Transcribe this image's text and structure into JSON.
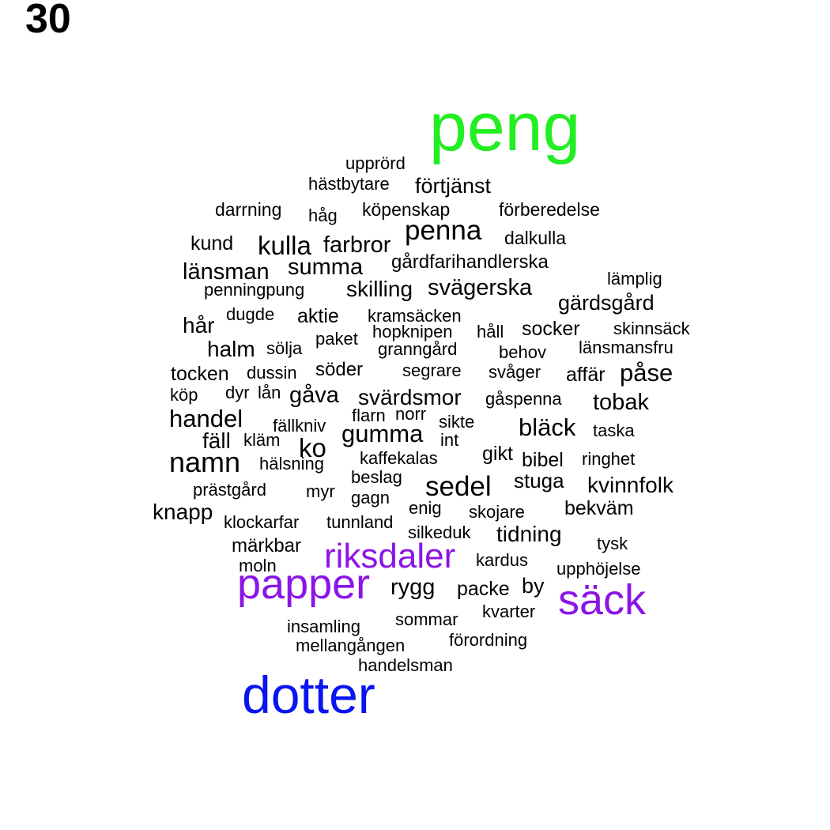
{
  "panel_label": "30",
  "colors": {
    "default": "#000000",
    "green": "#22ee22",
    "purple": "#8b14e6",
    "blue": "#0a14f0"
  },
  "words": [
    {
      "text": "peng",
      "color": "green"
    },
    {
      "text": "dotter",
      "color": "blue"
    },
    {
      "text": "papper",
      "color": "purple"
    },
    {
      "text": "riksdaler",
      "color": "purple"
    },
    {
      "text": "säck",
      "color": "purple"
    },
    {
      "text": "upprörd"
    },
    {
      "text": "hästbytare"
    },
    {
      "text": "förtjänst"
    },
    {
      "text": "darrning"
    },
    {
      "text": "håg"
    },
    {
      "text": "köpenskap"
    },
    {
      "text": "förberedelse"
    },
    {
      "text": "penna"
    },
    {
      "text": "kund"
    },
    {
      "text": "kulla"
    },
    {
      "text": "farbror"
    },
    {
      "text": "dalkulla"
    },
    {
      "text": "länsman"
    },
    {
      "text": "summa"
    },
    {
      "text": "gårdfarihandlerska"
    },
    {
      "text": "lämplig"
    },
    {
      "text": "penningpung"
    },
    {
      "text": "skilling"
    },
    {
      "text": "svägerska"
    },
    {
      "text": "gärdsgård"
    },
    {
      "text": "hår"
    },
    {
      "text": "dugde"
    },
    {
      "text": "aktie"
    },
    {
      "text": "kramsäcken"
    },
    {
      "text": "hopknipen"
    },
    {
      "text": "håll"
    },
    {
      "text": "socker"
    },
    {
      "text": "skinnsäck"
    },
    {
      "text": "halm"
    },
    {
      "text": "sölja"
    },
    {
      "text": "paket"
    },
    {
      "text": "granngård"
    },
    {
      "text": "behov"
    },
    {
      "text": "länsmansfru"
    },
    {
      "text": "tocken"
    },
    {
      "text": "dussin"
    },
    {
      "text": "söder"
    },
    {
      "text": "segrare"
    },
    {
      "text": "svåger"
    },
    {
      "text": "affär"
    },
    {
      "text": "påse"
    },
    {
      "text": "köp"
    },
    {
      "text": "dyr"
    },
    {
      "text": "lån"
    },
    {
      "text": "gåva"
    },
    {
      "text": "svärdsmor"
    },
    {
      "text": "gåspenna"
    },
    {
      "text": "tobak"
    },
    {
      "text": "handel"
    },
    {
      "text": "flarn"
    },
    {
      "text": "norr"
    },
    {
      "text": "fällkniv"
    },
    {
      "text": "gumma"
    },
    {
      "text": "sikte"
    },
    {
      "text": "bläck"
    },
    {
      "text": "taska"
    },
    {
      "text": "fäll"
    },
    {
      "text": "kläm"
    },
    {
      "text": "ko"
    },
    {
      "text": "int"
    },
    {
      "text": "gikt"
    },
    {
      "text": "namn"
    },
    {
      "text": "kaffekalas"
    },
    {
      "text": "bibel"
    },
    {
      "text": "ringhet"
    },
    {
      "text": "hälsning"
    },
    {
      "text": "beslag"
    },
    {
      "text": "sedel"
    },
    {
      "text": "stuga"
    },
    {
      "text": "kvinnfolk"
    },
    {
      "text": "prästgård"
    },
    {
      "text": "myr"
    },
    {
      "text": "gagn"
    },
    {
      "text": "enig"
    },
    {
      "text": "bekväm"
    },
    {
      "text": "knapp"
    },
    {
      "text": "klockarfar"
    },
    {
      "text": "tunnland"
    },
    {
      "text": "skojare"
    },
    {
      "text": "silkeduk"
    },
    {
      "text": "tidning"
    },
    {
      "text": "märkbar"
    },
    {
      "text": "tysk"
    },
    {
      "text": "moln"
    },
    {
      "text": "kardus"
    },
    {
      "text": "upphöjelse"
    },
    {
      "text": "rygg"
    },
    {
      "text": "packe"
    },
    {
      "text": "by"
    },
    {
      "text": "kvarter"
    },
    {
      "text": "sommar"
    },
    {
      "text": "insamling"
    },
    {
      "text": "förordning"
    },
    {
      "text": "mellangången"
    },
    {
      "text": "handelsman"
    }
  ]
}
